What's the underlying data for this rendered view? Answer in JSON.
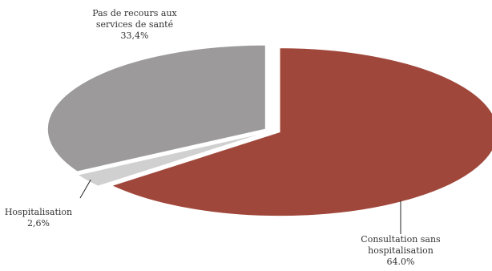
{
  "chart_data": {
    "type": "pie",
    "title": "",
    "slices": [
      {
        "label_lines": [
          "Consultation sans",
          "hospitalisation"
        ],
        "value": 64.0,
        "value_label": "64.0%",
        "color": "#a0473b"
      },
      {
        "label_lines": [
          "Hospitalisation"
        ],
        "value": 2.6,
        "value_label": "2,6%",
        "color": "#d0d0d0"
      },
      {
        "label_lines": [
          "Pas de recours aux",
          "services de santé"
        ],
        "value": 33.4,
        "value_label": "33,4%",
        "color": "#9c9a9a"
      }
    ],
    "legend": "none"
  }
}
